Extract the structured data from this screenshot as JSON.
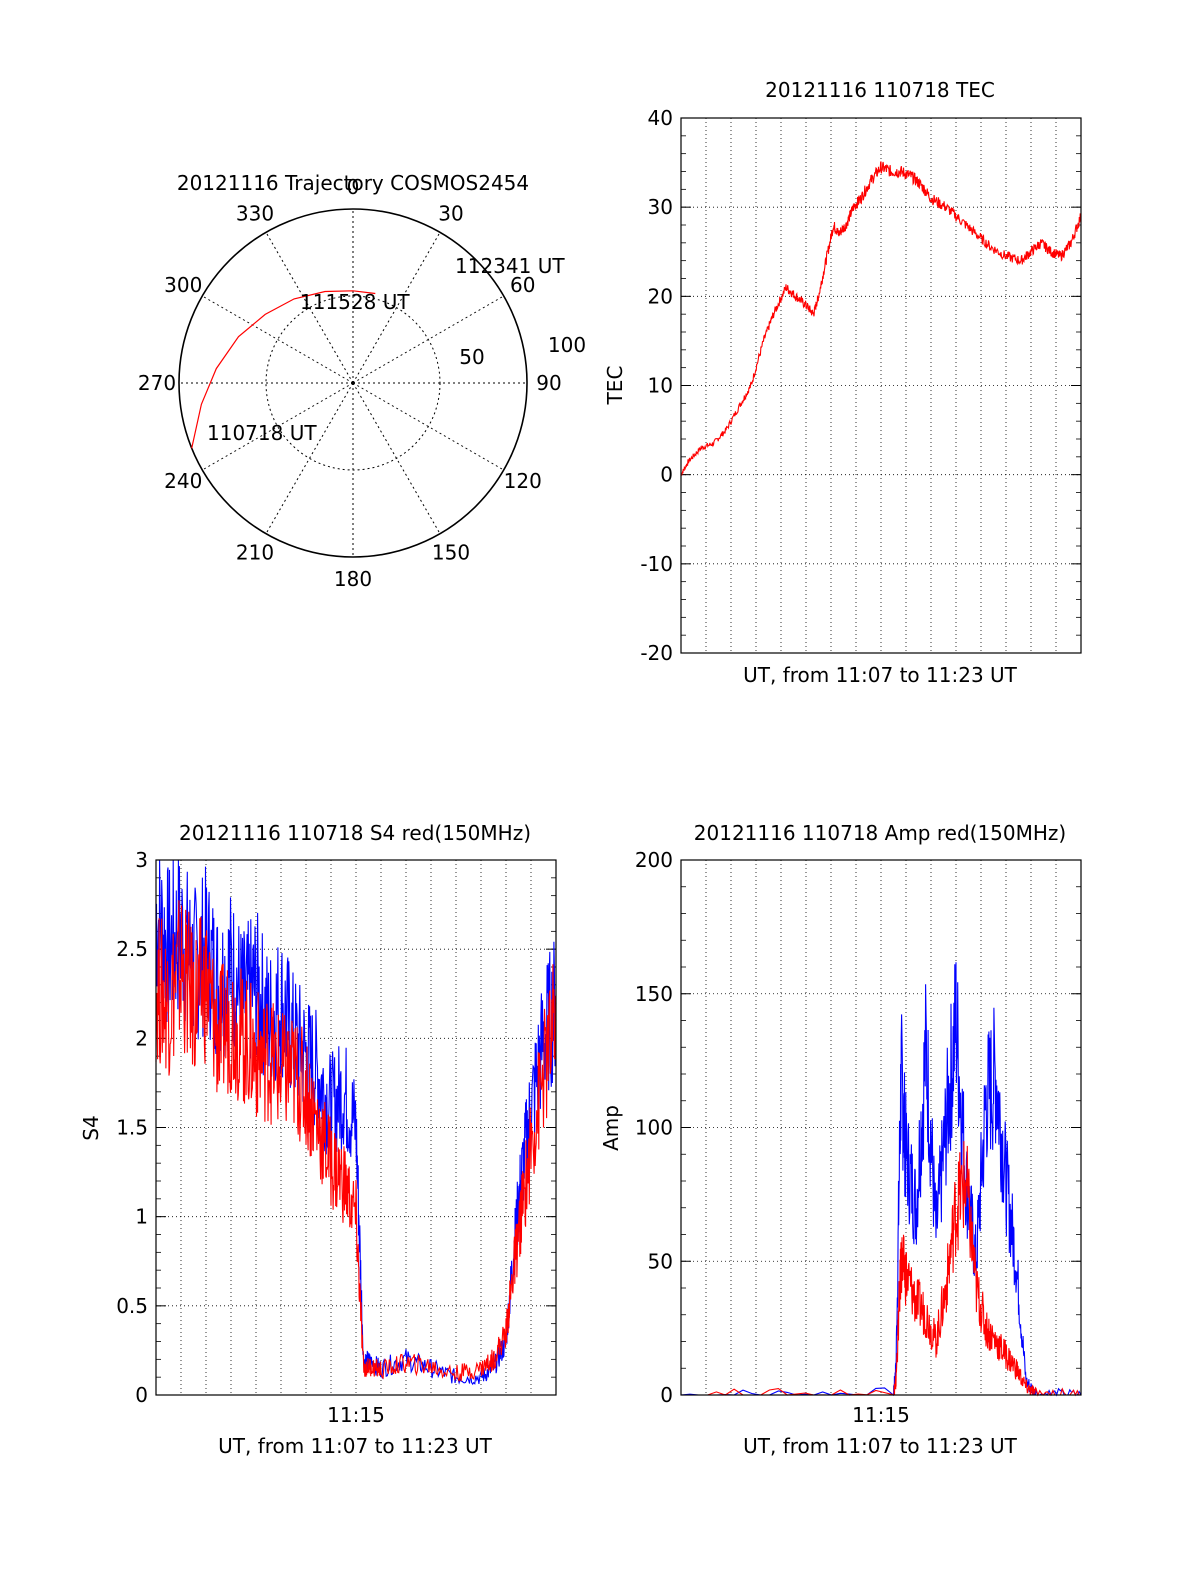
{
  "colors": {
    "red": "#ff0000",
    "blue": "#0000ff",
    "axis": "#000000",
    "grid": "#000000"
  },
  "chart_data": [
    {
      "type": "polar",
      "title": "20121116 Trajectory COSMOS2454",
      "angle_ticks": [
        "0",
        "30",
        "60",
        "90",
        "120",
        "150",
        "180",
        "210",
        "240",
        "270",
        "300",
        "330"
      ],
      "radial_ticks": [
        "50",
        "100"
      ],
      "radial_max": 100,
      "grid": true,
      "series": [
        {
          "color": "red",
          "points": [
            {
              "az": 248,
              "el": 0
            },
            {
              "az": 262,
              "el": 12
            },
            {
              "az": 276,
              "el": 21
            },
            {
              "az": 292,
              "el": 29
            },
            {
              "az": 308,
              "el": 36
            },
            {
              "az": 325,
              "el": 41
            },
            {
              "az": 343,
              "el": 45
            },
            {
              "az": 0,
              "el": 47
            },
            {
              "az": 14,
              "el": 47
            }
          ]
        }
      ],
      "annotations": [
        {
          "text": "112341 UT",
          "az": 14,
          "el": 47
        },
        {
          "text": "111528 UT",
          "az": 336,
          "el": 69
        },
        {
          "text": "110718 UT",
          "az": 248,
          "el": 0
        }
      ]
    },
    {
      "type": "line",
      "title": "20121116 110718 TEC",
      "xlabel": "UT, from 11:07 to 11:23 UT",
      "ylabel": "TEC",
      "xlim": [
        0,
        16
      ],
      "ylim": [
        -20,
        40
      ],
      "yticks": [
        -20,
        -10,
        0,
        10,
        20,
        30,
        40
      ],
      "grid": true,
      "series": [
        {
          "color": "red",
          "x": [
            0,
            0.3,
            0.8,
            1.3,
            1.8,
            2.4,
            2.8,
            3.3,
            3.7,
            4.2,
            4.6,
            5.0,
            5.3,
            5.5,
            5.8,
            6.1,
            6.3,
            6.6,
            6.9,
            7.2,
            7.6,
            8.0,
            8.4,
            8.8,
            9.2,
            9.6,
            10.0,
            10.6,
            11.2,
            11.8,
            12.4,
            13.0,
            13.6,
            14.0,
            14.4,
            14.8,
            15.2,
            15.6,
            16.0
          ],
          "y": [
            0,
            1.5,
            3,
            3.5,
            5,
            8,
            10,
            15,
            18,
            21,
            20,
            19,
            18,
            20,
            24,
            28,
            27,
            28,
            30,
            31,
            33,
            34.5,
            34,
            34,
            33.5,
            32.5,
            31,
            30,
            28.5,
            27,
            25.5,
            24.5,
            24,
            25,
            26,
            25,
            24.5,
            26,
            29
          ]
        }
      ]
    },
    {
      "type": "line",
      "title": "20121116 110718 S4 red(150MHz)",
      "xlabel": "UT, from 11:07 to 11:23 UT",
      "ylabel": "S4",
      "xtick_labels": [
        "11:15"
      ],
      "xlim": [
        0,
        16
      ],
      "ylim": [
        0,
        3
      ],
      "yticks": [
        0,
        0.5,
        1,
        1.5,
        2,
        2.5,
        3
      ],
      "grid": true,
      "series": [
        {
          "color": "blue",
          "x": [
            0,
            0.5,
            1,
            1.5,
            2,
            2.5,
            3,
            3.5,
            4,
            4.5,
            5,
            5.5,
            6,
            6.5,
            7,
            7.5,
            8,
            8.3,
            8.6,
            9,
            10,
            11,
            12,
            13,
            13.5,
            14,
            14.3,
            14.6,
            15,
            15.5,
            16
          ],
          "y": [
            2.7,
            2.5,
            2.6,
            2.4,
            2.5,
            2.3,
            2.4,
            2.2,
            2.3,
            2.1,
            2.2,
            2.0,
            1.9,
            1.8,
            1.6,
            1.7,
            1.5,
            0.2,
            0.18,
            0.15,
            0.2,
            0.15,
            0.1,
            0.1,
            0.15,
            0.3,
            0.8,
            1.2,
            1.6,
            2.0,
            2.2
          ]
        },
        {
          "color": "red",
          "x": [
            0,
            0.5,
            1,
            1.5,
            2,
            2.5,
            3,
            3.5,
            4,
            4.5,
            5,
            5.5,
            6,
            6.5,
            7,
            7.5,
            8,
            8.3,
            8.6,
            9,
            10,
            11,
            12,
            13,
            13.5,
            14,
            14.3,
            14.6,
            15,
            15.5,
            16
          ],
          "y": [
            2.3,
            2.2,
            2.4,
            2.2,
            2.3,
            2.0,
            2.1,
            2.0,
            1.9,
            1.9,
            1.8,
            1.8,
            1.7,
            1.5,
            1.3,
            1.2,
            1.0,
            0.15,
            0.16,
            0.14,
            0.18,
            0.16,
            0.12,
            0.15,
            0.2,
            0.35,
            0.7,
            1.0,
            1.4,
            1.8,
            2.1
          ]
        }
      ]
    },
    {
      "type": "line",
      "title": "20121116 110718 Amp red(150MHz)",
      "xlabel": "UT, from 11:07 to 11:23 UT",
      "ylabel": "Amp",
      "xtick_labels": [
        "11:15"
      ],
      "xlim": [
        0,
        16
      ],
      "ylim": [
        0,
        200
      ],
      "yticks": [
        0,
        50,
        100,
        150,
        200
      ],
      "grid": true,
      "series": [
        {
          "color": "blue",
          "x": [
            0,
            8.5,
            8.6,
            8.8,
            9.0,
            9.4,
            9.8,
            10.2,
            10.6,
            11.0,
            11.4,
            11.8,
            12.2,
            12.6,
            13.0,
            13.4,
            13.8,
            14.2,
            16
          ],
          "y": [
            0,
            0.5,
            10,
            120,
            90,
            70,
            130,
            60,
            100,
            140,
            80,
            50,
            110,
            120,
            80,
            50,
            5,
            0.5,
            0
          ]
        },
        {
          "color": "red",
          "x": [
            0,
            8.5,
            8.6,
            8.8,
            9.0,
            9.4,
            9.8,
            10.2,
            10.6,
            11.0,
            11.4,
            11.8,
            12.2,
            12.6,
            13.0,
            13.4,
            13.8,
            14.2,
            16
          ],
          "y": [
            0,
            0.5,
            5,
            50,
            45,
            35,
            30,
            20,
            40,
            70,
            80,
            40,
            25,
            20,
            15,
            10,
            3,
            0.5,
            0
          ]
        }
      ]
    }
  ]
}
